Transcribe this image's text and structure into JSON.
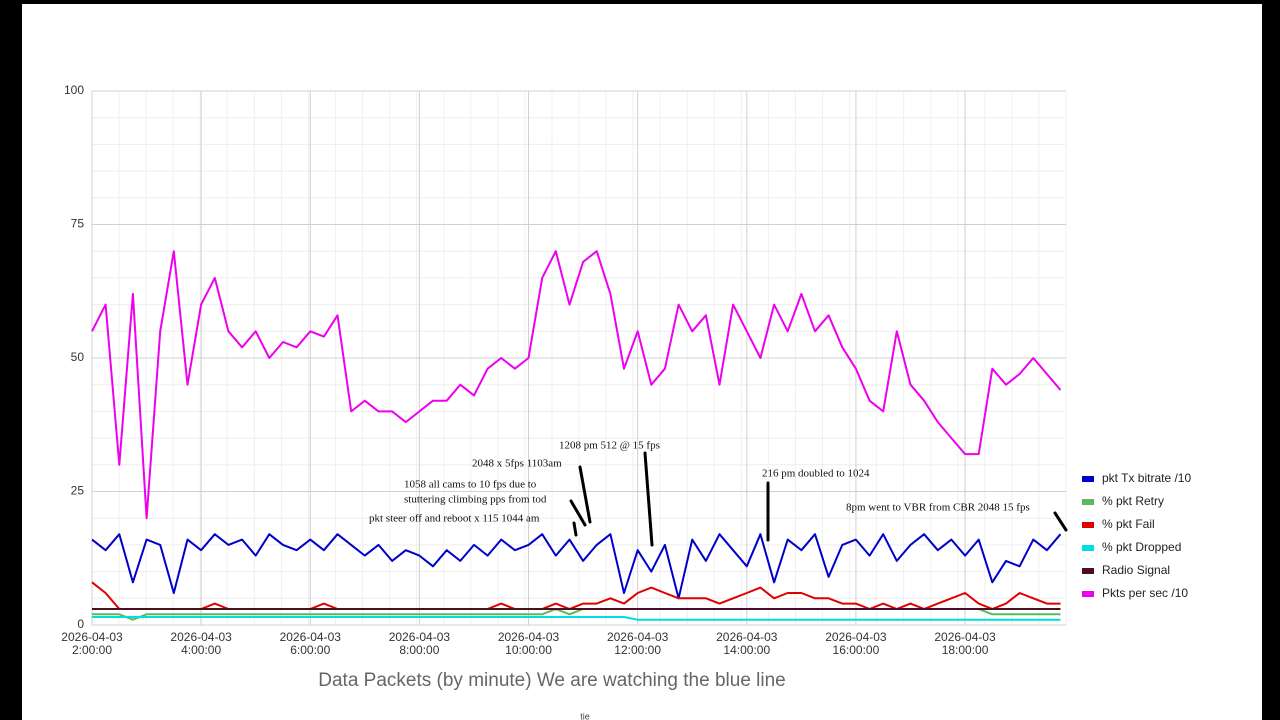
{
  "chart_data": {
    "type": "line",
    "title": "Data Packets  (by minute) We are watching the blue line",
    "footer": "tie",
    "xlim": [
      2,
      19.85
    ],
    "xticks": [
      {
        "value": 2,
        "label": "2026-04-03 2:00:00"
      },
      {
        "value": 4,
        "label": "2026-04-03 4:00:00"
      },
      {
        "value": 6,
        "label": "2026-04-03 6:00:00"
      },
      {
        "value": 8,
        "label": "2026-04-03 8:00:00"
      },
      {
        "value": 10,
        "label": "2026-04-03 10:00:00"
      },
      {
        "value": 12,
        "label": "2026-04-03 12:00:00"
      },
      {
        "value": 14,
        "label": "2026-04-03 14:00:00"
      },
      {
        "value": 16,
        "label": "2026-04-03 16:00:00"
      },
      {
        "value": 18,
        "label": "2026-04-03 18:00:00"
      }
    ],
    "ylim": [
      0,
      100
    ],
    "yticks": [
      0,
      25,
      50,
      75,
      100
    ],
    "grid": true,
    "x": [
      2,
      2.25,
      2.5,
      2.75,
      3,
      3.25,
      3.5,
      3.75,
      4,
      4.25,
      4.5,
      4.75,
      5,
      5.25,
      5.5,
      5.75,
      6,
      6.25,
      6.5,
      6.75,
      7,
      7.25,
      7.5,
      7.75,
      8,
      8.25,
      8.5,
      8.75,
      9,
      9.25,
      9.5,
      9.75,
      10,
      10.25,
      10.5,
      10.75,
      11,
      11.25,
      11.5,
      11.75,
      12,
      12.25,
      12.5,
      12.75,
      13,
      13.25,
      13.5,
      13.75,
      14,
      14.25,
      14.5,
      14.75,
      15,
      15.25,
      15.5,
      15.75,
      16,
      16.25,
      16.5,
      16.75,
      17,
      17.25,
      17.5,
      17.75,
      18,
      18.25,
      18.5,
      18.75,
      19,
      19.25,
      19.5,
      19.75
    ],
    "series": [
      {
        "name": "pkt Tx bitrate /10",
        "color": "#0000cc",
        "values": [
          16,
          14,
          17,
          8,
          16,
          15,
          6,
          16,
          14,
          17,
          15,
          16,
          13,
          17,
          15,
          14,
          16,
          14,
          17,
          15,
          13,
          15,
          12,
          14,
          13,
          11,
          14,
          12,
          15,
          13,
          16,
          14,
          15,
          17,
          13,
          16,
          12,
          15,
          17,
          6,
          14,
          10,
          15,
          5,
          16,
          12,
          17,
          14,
          11,
          17,
          8,
          16,
          14,
          17,
          9,
          15,
          16,
          13,
          17,
          12,
          15,
          17,
          14,
          16,
          13,
          16,
          8,
          12,
          11,
          16,
          14,
          17
        ]
      },
      {
        "name": "% pkt Retry",
        "color": "#5cb85c",
        "values": [
          2,
          2,
          2,
          1,
          2,
          2,
          2,
          2,
          2,
          2,
          2,
          2,
          2,
          2,
          2,
          2,
          2,
          2,
          2,
          2,
          2,
          2,
          2,
          2,
          2,
          2,
          2,
          2,
          2,
          2,
          2,
          2,
          2,
          2,
          3,
          2,
          3,
          3,
          3,
          3,
          3,
          3,
          3,
          3,
          3,
          3,
          3,
          3,
          3,
          3,
          3,
          3,
          3,
          3,
          3,
          3,
          3,
          3,
          3,
          3,
          3,
          3,
          3,
          3,
          3,
          3,
          2,
          2,
          2,
          2,
          2,
          2
        ]
      },
      {
        "name": "% pkt Fail",
        "color": "#e00000",
        "values": [
          8,
          6,
          3,
          3,
          3,
          3,
          3,
          3,
          3,
          4,
          3,
          3,
          3,
          3,
          3,
          3,
          3,
          4,
          3,
          3,
          3,
          3,
          3,
          3,
          3,
          3,
          3,
          3,
          3,
          3,
          4,
          3,
          3,
          3,
          4,
          3,
          4,
          4,
          5,
          4,
          6,
          7,
          6,
          5,
          5,
          5,
          4,
          5,
          6,
          7,
          5,
          6,
          6,
          5,
          5,
          4,
          4,
          3,
          4,
          3,
          4,
          3,
          4,
          5,
          6,
          4,
          3,
          4,
          6,
          5,
          4,
          4
        ]
      },
      {
        "name": "% pkt Dropped",
        "color": "#00dede",
        "values": [
          1.5,
          1.5,
          1.5,
          1.5,
          1.5,
          1.5,
          1.5,
          1.5,
          1.5,
          1.5,
          1.5,
          1.5,
          1.5,
          1.5,
          1.5,
          1.5,
          1.5,
          1.5,
          1.5,
          1.5,
          1.5,
          1.5,
          1.5,
          1.5,
          1.5,
          1.5,
          1.5,
          1.5,
          1.5,
          1.5,
          1.5,
          1.5,
          1.5,
          1.5,
          1.5,
          1.5,
          1.5,
          1.5,
          1.5,
          1.5,
          1,
          1,
          1,
          1,
          1,
          1,
          1,
          1,
          1,
          1,
          1,
          1,
          1,
          1,
          1,
          1,
          1,
          1,
          1,
          1,
          1,
          1,
          1,
          1,
          1,
          1,
          1,
          1,
          1,
          1,
          1,
          1
        ]
      },
      {
        "name": "Radio Signal",
        "color": "#4a1020",
        "values": [
          3,
          3,
          3,
          3,
          3,
          3,
          3,
          3,
          3,
          3,
          3,
          3,
          3,
          3,
          3,
          3,
          3,
          3,
          3,
          3,
          3,
          3,
          3,
          3,
          3,
          3,
          3,
          3,
          3,
          3,
          3,
          3,
          3,
          3,
          3,
          3,
          3,
          3,
          3,
          3,
          3,
          3,
          3,
          3,
          3,
          3,
          3,
          3,
          3,
          3,
          3,
          3,
          3,
          3,
          3,
          3,
          3,
          3,
          3,
          3,
          3,
          3,
          3,
          3,
          3,
          3,
          3,
          3,
          3,
          3,
          3,
          3
        ]
      },
      {
        "name": "Pkts per sec /10",
        "color": "#ee00ee",
        "values": [
          55,
          60,
          30,
          62,
          20,
          55,
          70,
          45,
          60,
          65,
          55,
          52,
          55,
          50,
          53,
          52,
          55,
          54,
          58,
          40,
          42,
          40,
          40,
          38,
          40,
          42,
          42,
          45,
          43,
          48,
          50,
          48,
          50,
          65,
          70,
          60,
          68,
          70,
          62,
          48,
          55,
          45,
          48,
          60,
          55,
          58,
          45,
          60,
          55,
          50,
          60,
          55,
          62,
          55,
          58,
          52,
          48,
          42,
          40,
          55,
          45,
          42,
          38,
          35,
          32,
          32,
          48,
          45,
          47,
          50,
          47,
          44
        ]
      }
    ],
    "annotations": [
      "1208 pm 512 @ 15 fps",
      "2048 x 5fps 1103am",
      "1058 all cams to 10 fps due to",
      "stuttering climbing pps from tod",
      "pkt steer off and reboot x 115 1044 am",
      "216 pm doubled to 1024",
      "8pm went to VBR from CBR 2048 15 fps"
    ]
  }
}
